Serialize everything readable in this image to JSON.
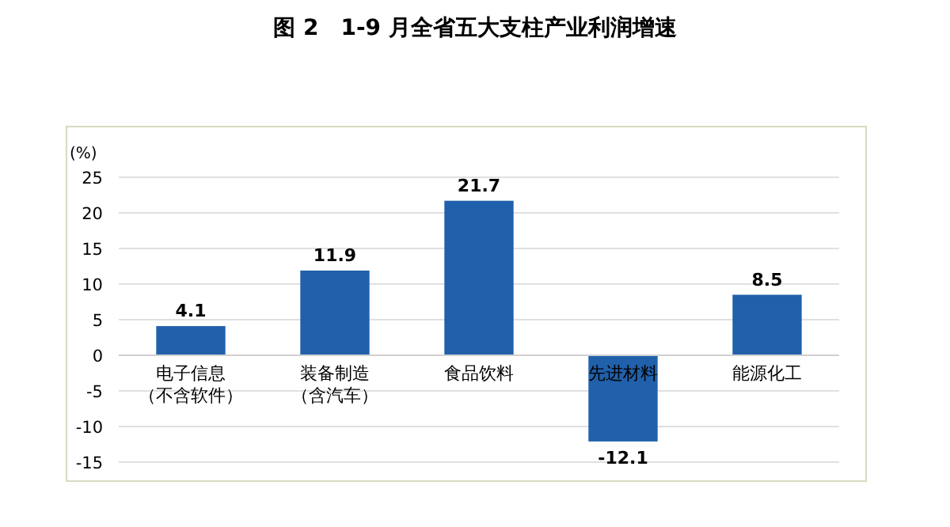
{
  "chart_data": {
    "type": "bar",
    "title": "图 2　1-9 月全省五大支柱产业利润增速",
    "ylabel": "(%)",
    "categories": [
      "电子信息（不含软件）",
      "装备制造（含汽车）",
      "食品饮料",
      "先进材料",
      "能源化工"
    ],
    "values": [
      4.1,
      11.9,
      21.7,
      -12.1,
      8.5
    ],
    "color": "#2160aa",
    "ylim": [
      -15,
      25
    ],
    "yticks": [
      -15,
      -10,
      -5,
      0,
      5,
      10,
      15,
      20,
      25
    ],
    "grid": "y",
    "data_labels": true
  }
}
